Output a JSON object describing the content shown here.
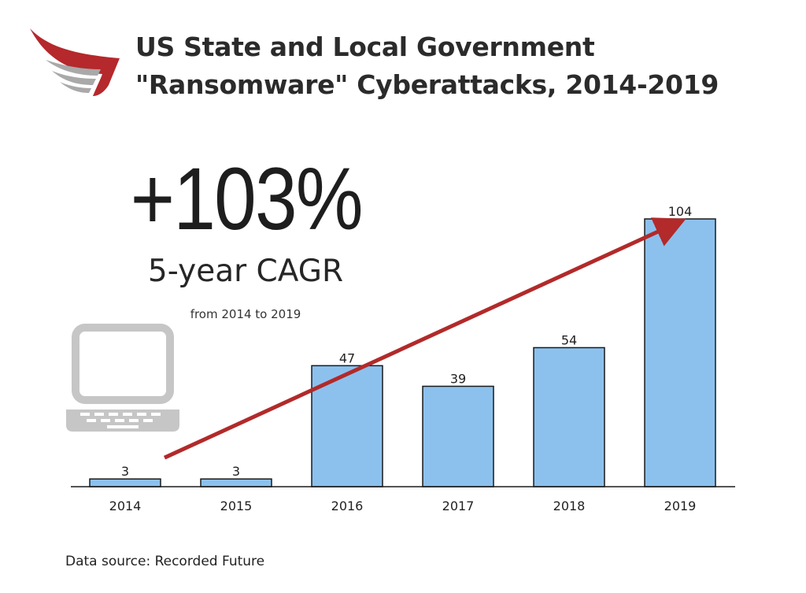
{
  "header": {
    "title_line1": "US State and Local Government",
    "title_line2": "\"Ransomware\" Cyberattacks, 2014-2019"
  },
  "highlight": {
    "value": "+103%",
    "label": "5-year CAGR",
    "sublabel": "from 2014 to 2019"
  },
  "footer": {
    "source": "Data source: Recorded Future"
  },
  "icons": {
    "logo": "wing-logo-icon",
    "laptop": "laptop-icon"
  },
  "colors": {
    "bar_fill": "#8cc1ee",
    "bar_stroke": "#1a1a1a",
    "arrow": "#b22a2a",
    "logo_red": "#b5282c",
    "logo_gray": "#a9a9a9",
    "laptop_gray": "#c6c6c6"
  },
  "chart_data": {
    "type": "bar",
    "categories": [
      "2014",
      "2015",
      "2016",
      "2017",
      "2018",
      "2019"
    ],
    "values": [
      3,
      3,
      47,
      39,
      54,
      104
    ],
    "data_labels": [
      "3",
      "3",
      "47",
      "39",
      "54",
      "104"
    ],
    "title": "US State and Local Government \"Ransomware\" Cyberattacks, 2014-2019",
    "xlabel": "",
    "ylabel": "",
    "ylim": [
      0,
      104
    ],
    "grid": false,
    "annotations": [
      "trend arrow from 2014 to 2019"
    ]
  }
}
